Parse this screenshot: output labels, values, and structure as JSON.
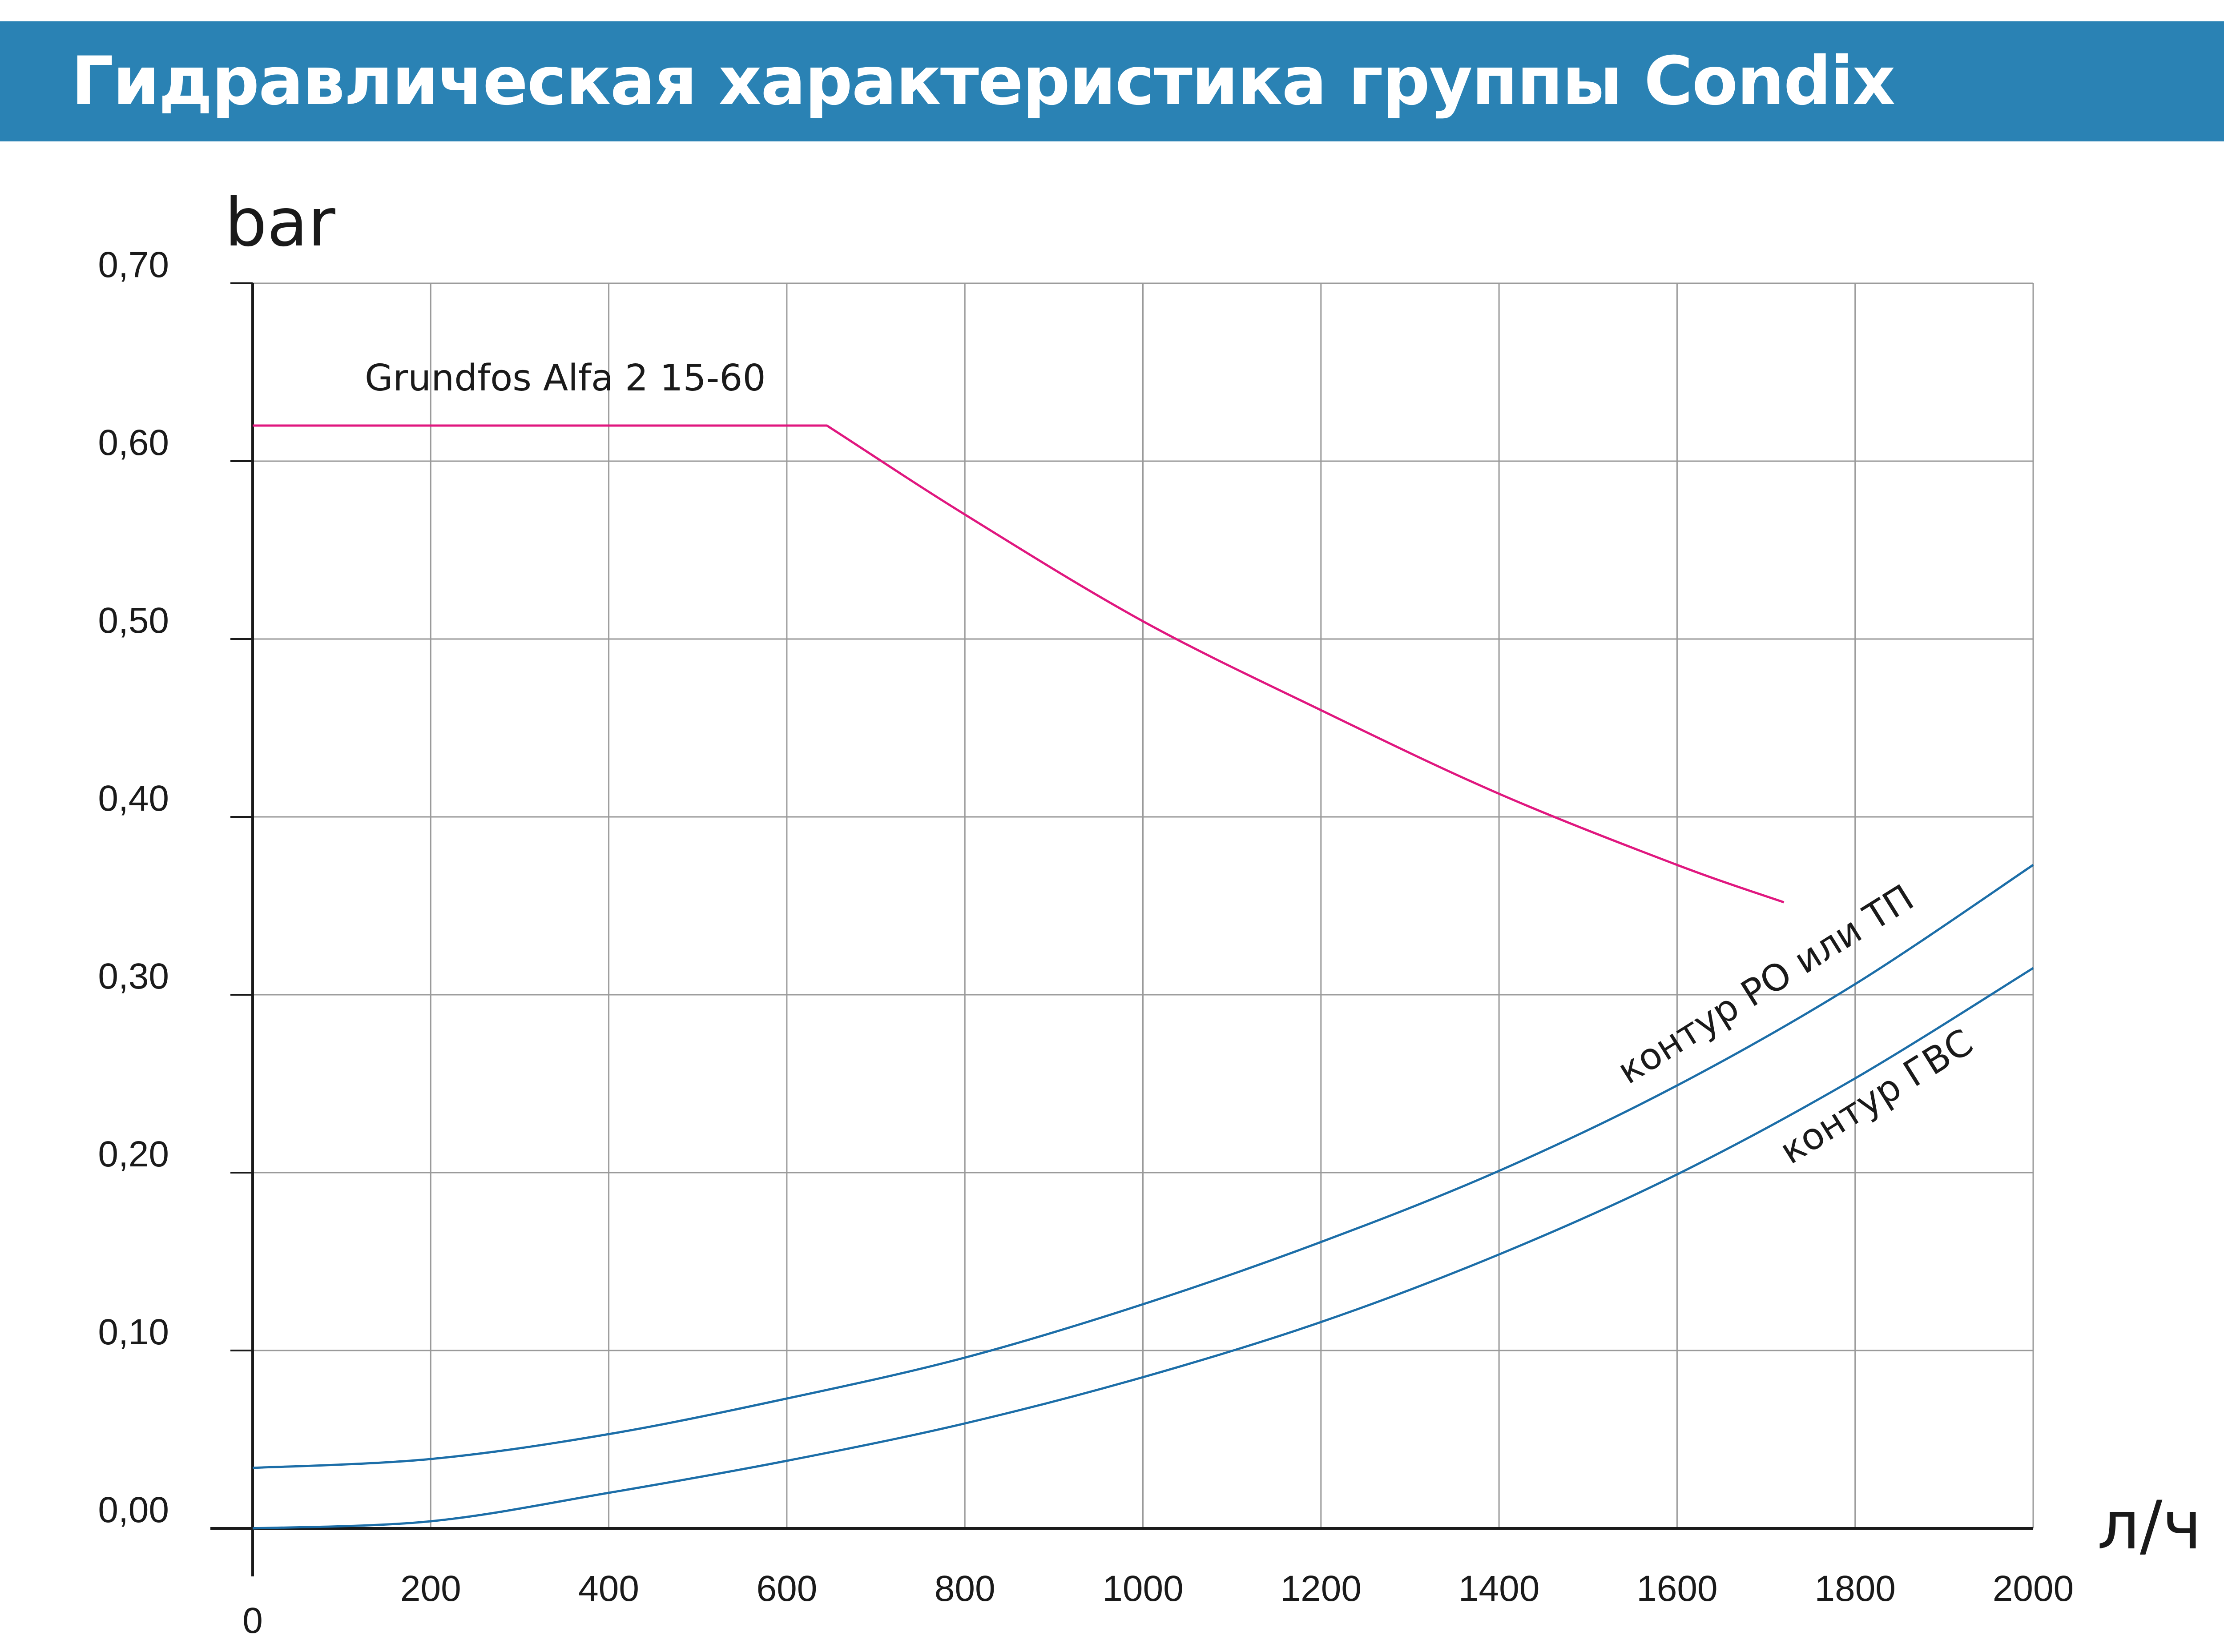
{
  "header": {
    "title": "Гидравлическая характеристика группы Condix",
    "background_color": "#2a82b4"
  },
  "chart_data": {
    "type": "line",
    "title": "Гидравлическая характеристика группы Condix",
    "xlabel": "л/ч",
    "ylabel": "bar",
    "xlim": [
      0,
      2000
    ],
    "ylim": [
      0,
      0.7
    ],
    "grid": true,
    "x_ticks": [
      {
        "value": 0,
        "label": "0"
      },
      {
        "value": 200,
        "label": "200"
      },
      {
        "value": 400,
        "label": "400"
      },
      {
        "value": 600,
        "label": "600"
      },
      {
        "value": 800,
        "label": "800"
      },
      {
        "value": 1000,
        "label": "1000"
      },
      {
        "value": 1200,
        "label": "1200"
      },
      {
        "value": 1400,
        "label": "1400"
      },
      {
        "value": 1600,
        "label": "1600"
      },
      {
        "value": 1800,
        "label": "1800"
      },
      {
        "value": 2000,
        "label": "2000"
      }
    ],
    "y_ticks": [
      {
        "value": 0.0,
        "label": "0,00"
      },
      {
        "value": 0.1,
        "label": "0,10"
      },
      {
        "value": 0.2,
        "label": "0,20"
      },
      {
        "value": 0.3,
        "label": "0,30"
      },
      {
        "value": 0.4,
        "label": "0,40"
      },
      {
        "value": 0.5,
        "label": "0,50"
      },
      {
        "value": 0.6,
        "label": "0,60"
      },
      {
        "value": 0.7,
        "label": "0,70"
      }
    ],
    "series": [
      {
        "name": "Grundfos Alfa 2 15-60",
        "color": "#e0177f",
        "x": [
          0,
          200,
          400,
          645,
          800,
          1000,
          1200,
          1400,
          1600,
          1720
        ],
        "y": [
          0.62,
          0.62,
          0.62,
          0.62,
          0.57,
          0.51,
          0.46,
          0.413,
          0.373,
          0.352
        ]
      },
      {
        "name": "контур РО или ТП",
        "color": "#1c6ea8",
        "x": [
          0,
          200,
          400,
          600,
          800,
          1000,
          1200,
          1400,
          1600,
          1800,
          2000
        ],
        "y": [
          0.034,
          0.039,
          0.053,
          0.073,
          0.096,
          0.126,
          0.161,
          0.201,
          0.249,
          0.306,
          0.373
        ]
      },
      {
        "name": "контур ГВС",
        "color": "#1c6ea8",
        "x": [
          0,
          200,
          400,
          600,
          800,
          1000,
          1200,
          1400,
          1600,
          1800,
          2000
        ],
        "y": [
          0.0,
          0.004,
          0.02,
          0.038,
          0.059,
          0.085,
          0.116,
          0.154,
          0.199,
          0.253,
          0.315
        ]
      }
    ]
  }
}
